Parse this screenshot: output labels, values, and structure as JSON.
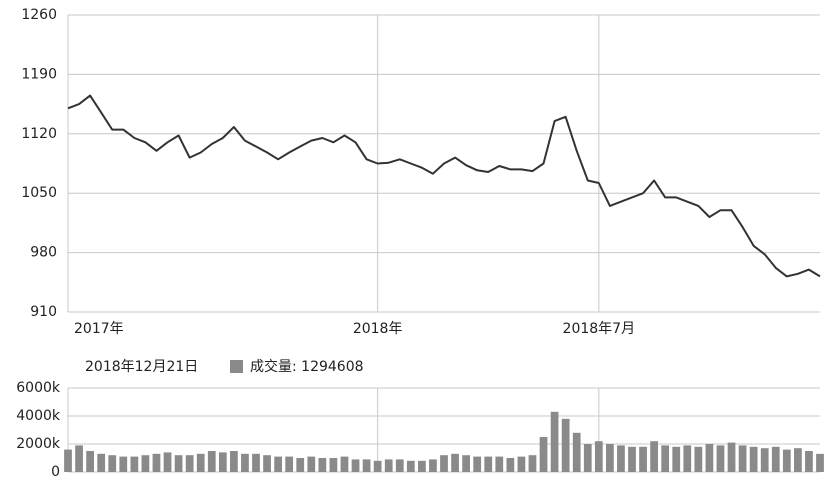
{
  "chart_data": [
    {
      "type": "line",
      "color": "#333333",
      "categories": [
        "2017年",
        null,
        null,
        null,
        null,
        null,
        null,
        null,
        null,
        null,
        null,
        null,
        null,
        null,
        null,
        null,
        null,
        null,
        null,
        null,
        null,
        null,
        null,
        null,
        null,
        null,
        null,
        null,
        "2018年",
        null,
        null,
        null,
        null,
        null,
        null,
        null,
        null,
        null,
        null,
        null,
        null,
        null,
        null,
        null,
        null,
        null,
        null,
        null,
        "2018年7月",
        null,
        null,
        null,
        null,
        null,
        null,
        null,
        null,
        null,
        null,
        null,
        null,
        null,
        null,
        null,
        null,
        null,
        null,
        null,
        null
      ],
      "values": [
        1150,
        1155,
        1165,
        1145,
        1125,
        1125,
        1115,
        1110,
        1100,
        1110,
        1118,
        1092,
        1098,
        1108,
        1115,
        1128,
        1112,
        1105,
        1098,
        1090,
        1098,
        1105,
        1112,
        1115,
        1110,
        1118,
        1110,
        1090,
        1085,
        1086,
        1090,
        1085,
        1080,
        1073,
        1085,
        1092,
        1083,
        1077,
        1075,
        1082,
        1078,
        1078,
        1076,
        1085,
        1135,
        1140,
        1100,
        1065,
        1062,
        1035,
        1040,
        1045,
        1050,
        1065,
        1045,
        1045,
        1040,
        1035,
        1022,
        1030,
        1030,
        1010,
        988,
        978,
        962,
        952,
        955,
        960,
        952
      ],
      "ylim": [
        910,
        1260
      ],
      "yticks": [
        910,
        980,
        1050,
        1120,
        1190,
        1260
      ],
      "grid": true
    },
    {
      "type": "bar",
      "subtitle": "2018年12月21日",
      "series": [
        {
          "name": "成交量: 1294608",
          "color": "#8a8a8a",
          "values": [
            1600000,
            1900000,
            1500000,
            1300000,
            1200000,
            1100000,
            1100000,
            1200000,
            1300000,
            1400000,
            1200000,
            1200000,
            1300000,
            1500000,
            1400000,
            1500000,
            1300000,
            1300000,
            1200000,
            1100000,
            1100000,
            1000000,
            1100000,
            1000000,
            1000000,
            1100000,
            900000,
            900000,
            800000,
            900000,
            900000,
            800000,
            800000,
            900000,
            1200000,
            1300000,
            1200000,
            1100000,
            1100000,
            1100000,
            1000000,
            1100000,
            1200000,
            2500000,
            4300000,
            3800000,
            2800000,
            2000000,
            2200000,
            2000000,
            1900000,
            1800000,
            1800000,
            2200000,
            1900000,
            1800000,
            1900000,
            1800000,
            2000000,
            1900000,
            2100000,
            1900000,
            1800000,
            1700000,
            1800000,
            1600000,
            1700000,
            1500000,
            1294608
          ]
        }
      ],
      "ylim": [
        0,
        6000000
      ],
      "yticks": [
        {
          "value": 0,
          "label": "0"
        },
        {
          "value": 2000000,
          "label": "2000k"
        },
        {
          "value": 4000000,
          "label": "4000k"
        },
        {
          "value": 6000000,
          "label": "6000k"
        }
      ],
      "grid": true
    }
  ]
}
